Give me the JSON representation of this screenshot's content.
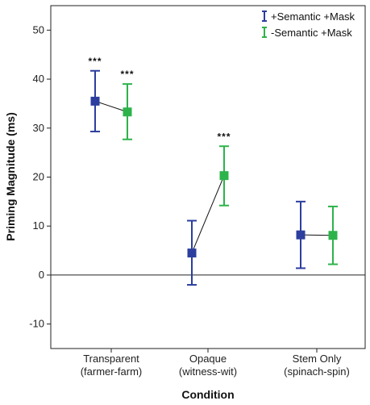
{
  "chart_data": {
    "type": "line",
    "xlabel": "Condition",
    "ylabel": "Priming Magnitude (ms)",
    "ylim": [
      -15,
      55
    ],
    "yticks": [
      -10,
      0,
      10,
      20,
      30,
      40,
      50
    ],
    "categories": [
      [
        "Transparent",
        "(farmer-farm)"
      ],
      [
        "Opaque",
        "(witness-wit)"
      ],
      [
        "Stem Only",
        "(spinach-spin)"
      ]
    ],
    "reference_line": 0,
    "legend_position": "top-right",
    "series": [
      {
        "name": "+Semantic +Mask",
        "color": "#2c3e9e",
        "values": [
          35.5,
          4.5,
          8.2
        ],
        "lower": [
          29.3,
          -2.0,
          1.4
        ],
        "upper": [
          41.7,
          11.1,
          15.0
        ]
      },
      {
        "name": "-Semantic +Mask",
        "color": "#2db34a",
        "values": [
          33.3,
          20.3,
          8.1
        ],
        "lower": [
          27.7,
          14.2,
          2.2
        ],
        "upper": [
          39.0,
          26.3,
          14.0
        ]
      }
    ],
    "annotations": [
      {
        "text": "***",
        "category": 0,
        "series": 0
      },
      {
        "text": "***",
        "category": 0,
        "series": 1
      },
      {
        "text": "***",
        "category": 1,
        "series": 1
      }
    ]
  }
}
